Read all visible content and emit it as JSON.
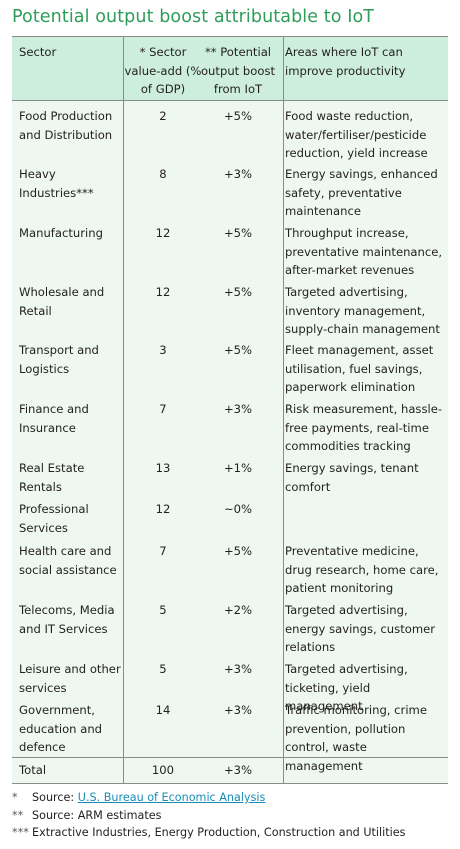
{
  "title": "Potential output boost attributable to IoT",
  "headers": {
    "sector": "Sector",
    "value_add": "* Sector value-add (% of GDP)",
    "potential": "** Potential output boost from IoT",
    "areas": "Areas where IoT can improve productivity"
  },
  "rows": [
    {
      "sector": "Food Production and Distribution",
      "value_add": "2",
      "boost": "+5%",
      "areas": "Food waste reduction, water/fertiliser/pesticide reduction, yield increase"
    },
    {
      "sector": "Heavy Industries***",
      "value_add": "8",
      "boost": "+3%",
      "areas": "Energy savings, enhanced safety, preventative maintenance"
    },
    {
      "sector": "Manufacturing",
      "value_add": "12",
      "boost": "+5%",
      "areas": "Throughput increase, preventative maintenance, after-market revenues"
    },
    {
      "sector": "Wholesale and Retail",
      "value_add": "12",
      "boost": "+5%",
      "areas": "Targeted advertising, inventory management, supply-chain management"
    },
    {
      "sector": "Transport and Logistics",
      "value_add": "3",
      "boost": "+5%",
      "areas": "Fleet management, asset utilisation, fuel savings, paperwork elimination"
    },
    {
      "sector": "Finance and Insurance",
      "value_add": "7",
      "boost": "+3%",
      "areas": "Risk measurement, hassle-free payments, real-time commodities tracking"
    },
    {
      "sector": "Real Estate Rentals",
      "value_add": "13",
      "boost": "+1%",
      "areas": "Energy savings, tenant comfort"
    },
    {
      "sector": "Professional Services",
      "value_add": "12",
      "boost": "~0%",
      "areas": ""
    },
    {
      "sector": "Health care and social assistance",
      "value_add": "7",
      "boost": "+5%",
      "areas": "Preventative medicine, drug research, home care, patient monitoring"
    },
    {
      "sector": "Telecoms, Media and IT Services",
      "value_add": "5",
      "boost": "+2%",
      "areas": "Targeted advertising, energy savings, customer relations"
    },
    {
      "sector": "Leisure and other services",
      "value_add": "5",
      "boost": "+3%",
      "areas": "Targeted advertising, ticketing, yield management"
    },
    {
      "sector": "Government, education and defence",
      "value_add": "14",
      "boost": "+3%",
      "areas": "Traffic monitoring, crime prevention, pollution control, waste management"
    }
  ],
  "total": {
    "sector": "Total",
    "value_add": "100",
    "boost": "+3%"
  },
  "footnotes": {
    "f1_marker": "*",
    "f1_prefix": "Source: ",
    "f1_link": "U.S. Bureau of Economic Analysis",
    "f2_marker": "**",
    "f2_text": "Source: ARM estimates",
    "f3_marker": "***",
    "f3_text": "Extractive Industries, Energy Production, Construction and Utilities"
  },
  "colors": {
    "title": "#2e9d5a",
    "header_bg": "#cdeedd",
    "body_bg": "#eef8f1",
    "link": "#1a8db5"
  }
}
